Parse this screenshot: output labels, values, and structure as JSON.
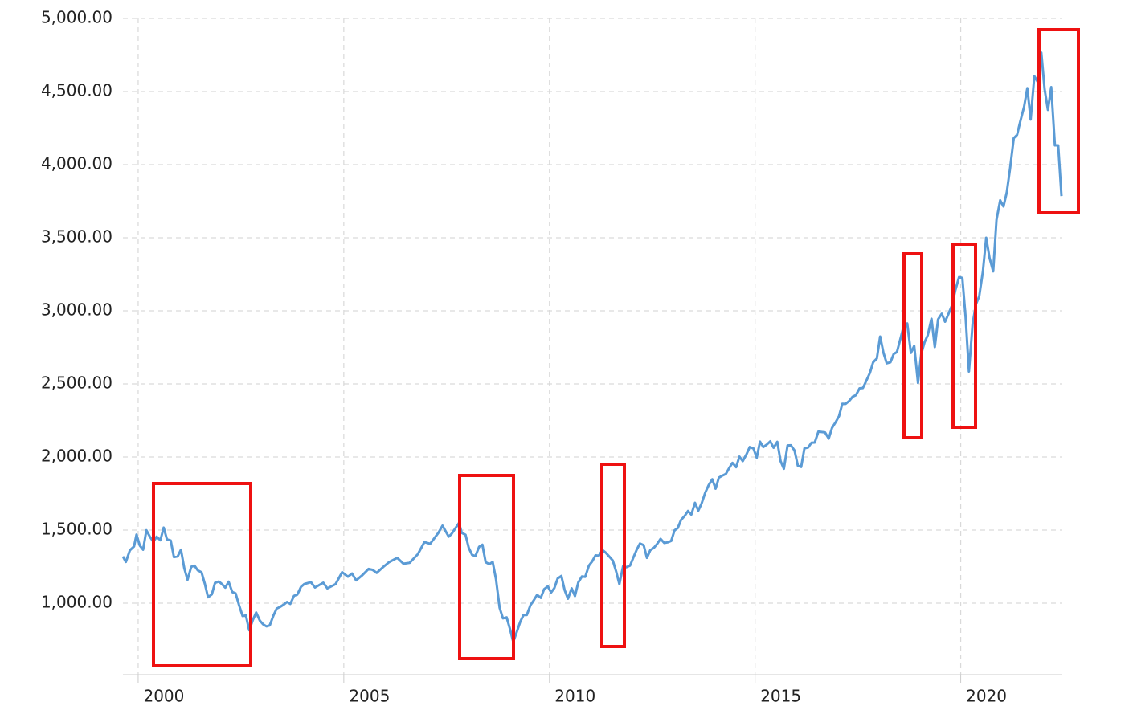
{
  "chart_data": {
    "type": "line",
    "x": [
      1999.63,
      1999.7,
      1999.8,
      1999.9,
      1999.96,
      2000.04,
      2000.12,
      2000.2,
      2000.29,
      2000.37,
      2000.45,
      2000.54,
      2000.62,
      2000.7,
      2000.79,
      2000.87,
      2000.96,
      2001.04,
      2001.12,
      2001.2,
      2001.29,
      2001.37,
      2001.45,
      2001.54,
      2001.62,
      2001.7,
      2001.79,
      2001.87,
      2001.96,
      2002.04,
      2002.12,
      2002.2,
      2002.29,
      2002.37,
      2002.45,
      2002.54,
      2002.62,
      2002.7,
      2002.79,
      2002.87,
      2002.96,
      2003.04,
      2003.12,
      2003.2,
      2003.29,
      2003.37,
      2003.45,
      2003.54,
      2003.62,
      2003.7,
      2003.79,
      2003.87,
      2003.96,
      2004.04,
      2004.2,
      2004.3,
      2004.5,
      2004.6,
      2004.8,
      2004.96,
      2005.1,
      2005.2,
      2005.3,
      2005.45,
      2005.6,
      2005.7,
      2005.8,
      2005.96,
      2006.1,
      2006.3,
      2006.45,
      2006.6,
      2006.8,
      2006.96,
      2007.1,
      2007.3,
      2007.4,
      2007.55,
      2007.62,
      2007.8,
      2007.87,
      2007.96,
      2008.04,
      2008.12,
      2008.2,
      2008.29,
      2008.37,
      2008.45,
      2008.54,
      2008.62,
      2008.7,
      2008.79,
      2008.87,
      2008.96,
      2009.04,
      2009.12,
      2009.2,
      2009.29,
      2009.37,
      2009.45,
      2009.54,
      2009.62,
      2009.7,
      2009.79,
      2009.87,
      2009.96,
      2010.04,
      2010.12,
      2010.2,
      2010.29,
      2010.37,
      2010.45,
      2010.54,
      2010.62,
      2010.7,
      2010.79,
      2010.87,
      2010.96,
      2011.04,
      2011.12,
      2011.2,
      2011.29,
      2011.37,
      2011.45,
      2011.54,
      2011.62,
      2011.7,
      2011.79,
      2011.87,
      2011.96,
      2012.04,
      2012.12,
      2012.2,
      2012.29,
      2012.37,
      2012.45,
      2012.54,
      2012.62,
      2012.7,
      2012.79,
      2012.87,
      2012.96,
      2013.04,
      2013.12,
      2013.2,
      2013.29,
      2013.37,
      2013.45,
      2013.54,
      2013.62,
      2013.7,
      2013.79,
      2013.87,
      2013.96,
      2014.04,
      2014.12,
      2014.2,
      2014.29,
      2014.37,
      2014.45,
      2014.54,
      2014.62,
      2014.7,
      2014.79,
      2014.87,
      2014.96,
      2015.04,
      2015.12,
      2015.2,
      2015.29,
      2015.37,
      2015.45,
      2015.54,
      2015.62,
      2015.7,
      2015.79,
      2015.87,
      2015.96,
      2016.04,
      2016.12,
      2016.2,
      2016.29,
      2016.37,
      2016.45,
      2016.54,
      2016.62,
      2016.7,
      2016.79,
      2016.87,
      2016.96,
      2017.04,
      2017.12,
      2017.2,
      2017.29,
      2017.37,
      2017.45,
      2017.54,
      2017.62,
      2017.7,
      2017.79,
      2017.87,
      2017.96,
      2018.04,
      2018.12,
      2018.2,
      2018.29,
      2018.37,
      2018.45,
      2018.54,
      2018.62,
      2018.7,
      2018.79,
      2018.87,
      2018.96,
      2019.04,
      2019.12,
      2019.2,
      2019.29,
      2019.37,
      2019.45,
      2019.54,
      2019.62,
      2019.7,
      2019.79,
      2019.87,
      2019.96,
      2020.04,
      2020.12,
      2020.2,
      2020.29,
      2020.37,
      2020.45,
      2020.54,
      2020.62,
      2020.7,
      2020.79,
      2020.87,
      2020.96,
      2021.04,
      2021.12,
      2021.2,
      2021.29,
      2021.37,
      2021.45,
      2021.54,
      2021.62,
      2021.7,
      2021.79,
      2021.87,
      2021.96,
      2022.04,
      2022.12,
      2022.2,
      2022.29,
      2022.37,
      2022.45
    ],
    "values": [
      1320,
      1282,
      1362,
      1388,
      1469,
      1394,
      1366,
      1499,
      1452,
      1420,
      1455,
      1430,
      1517,
      1436,
      1429,
      1315,
      1320,
      1366,
      1240,
      1160,
      1249,
      1256,
      1224,
      1211,
      1133,
      1040,
      1060,
      1139,
      1148,
      1130,
      1106,
      1147,
      1076,
      1067,
      990,
      912,
      916,
      815,
      885,
      936,
      880,
      855,
      841,
      848,
      916,
      963,
      974,
      990,
      1008,
      995,
      1050,
      1058,
      1112,
      1131,
      1144,
      1107,
      1140,
      1101,
      1130,
      1212,
      1181,
      1203,
      1156,
      1191,
      1234,
      1228,
      1207,
      1248,
      1280,
      1310,
      1270,
      1276,
      1335,
      1418,
      1406,
      1482,
      1530,
      1455,
      1473,
      1549,
      1481,
      1468,
      1378,
      1330,
      1322,
      1385,
      1400,
      1280,
      1267,
      1282,
      1166,
      968,
      896,
      903,
      825,
      735,
      798,
      872,
      919,
      919,
      987,
      1020,
      1057,
      1036,
      1095,
      1115,
      1073,
      1104,
      1169,
      1186,
      1089,
      1030,
      1101,
      1049,
      1141,
      1183,
      1180,
      1257,
      1286,
      1327,
      1325,
      1363,
      1345,
      1320,
      1292,
      1218,
      1131,
      1253,
      1246,
      1257,
      1312,
      1365,
      1408,
      1397,
      1310,
      1362,
      1379,
      1406,
      1440,
      1412,
      1416,
      1426,
      1498,
      1514,
      1569,
      1597,
      1631,
      1606,
      1686,
      1633,
      1682,
      1757,
      1806,
      1848,
      1783,
      1859,
      1872,
      1884,
      1924,
      1960,
      1931,
      2003,
      1972,
      2018,
      2068,
      2059,
      1995,
      2105,
      2068,
      2086,
      2107,
      2063,
      2104,
      1972,
      1920,
      2079,
      2080,
      2044,
      1940,
      1932,
      2060,
      2065,
      2097,
      2099,
      2174,
      2171,
      2168,
      2126,
      2199,
      2239,
      2279,
      2364,
      2363,
      2384,
      2412,
      2423,
      2470,
      2472,
      2519,
      2575,
      2648,
      2674,
      2824,
      2714,
      2641,
      2648,
      2705,
      2718,
      2816,
      2902,
      2914,
      2712,
      2760,
      2507,
      2704,
      2784,
      2834,
      2946,
      2752,
      2942,
      2980,
      2926,
      2977,
      3038,
      3141,
      3231,
      3225,
      2954,
      2585,
      2912,
      3044,
      3100,
      3271,
      3500,
      3363,
      3270,
      3622,
      3756,
      3714,
      3811,
      3973,
      4181,
      4204,
      4298,
      4395,
      4523,
      4308,
      4605,
      4567,
      4766,
      4516,
      4374,
      4530,
      4132,
      4132,
      3785
    ],
    "color": "#5b9bd5",
    "xlim": [
      1999.63,
      2022.47
    ],
    "xticks": [
      2000,
      2005,
      2010,
      2015,
      2020
    ],
    "ylim": [
      511,
      5000
    ],
    "yticks": [
      {
        "value": 1000,
        "label": "1,000.00"
      },
      {
        "value": 1500,
        "label": "1,500.00"
      },
      {
        "value": 2000,
        "label": "2,000.00"
      },
      {
        "value": 2500,
        "label": "2,500.00"
      },
      {
        "value": 3000,
        "label": "3,000.00"
      },
      {
        "value": 3500,
        "label": "3,500.00"
      },
      {
        "value": 4000,
        "label": "4,000.00"
      },
      {
        "value": 4500,
        "label": "4,500.00"
      },
      {
        "value": 5000,
        "label": "5,000.00"
      }
    ],
    "grid": true
  }
}
